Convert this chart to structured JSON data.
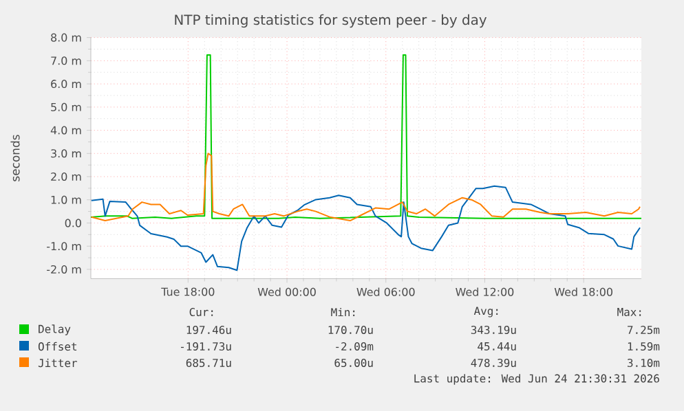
{
  "chart_data": {
    "type": "line",
    "title": "NTP timing statistics for system peer - by day",
    "ylabel": "seconds",
    "xlim": [
      "2026-06-23T12:06",
      "2026-06-24T21:30"
    ],
    "ylim": [
      -2.4,
      8.0
    ],
    "xticks": [
      {
        "value": "2026-06-23T18:00",
        "label": "Tue 18:00"
      },
      {
        "value": "2026-06-24T00:00",
        "label": "Wed 00:00"
      },
      {
        "value": "2026-06-24T06:00",
        "label": "Wed 06:00"
      },
      {
        "value": "2026-06-24T12:00",
        "label": "Wed 12:00"
      },
      {
        "value": "2026-06-24T18:00",
        "label": "Wed 18:00"
      }
    ],
    "yticks": [
      {
        "value": -2,
        "label": "-2.0 m"
      },
      {
        "value": -1,
        "label": "-1.0 m"
      },
      {
        "value": 0,
        "label": "0.0"
      },
      {
        "value": 1,
        "label": "1.0 m"
      },
      {
        "value": 2,
        "label": "2.0 m"
      },
      {
        "value": 3,
        "label": "3.0 m"
      },
      {
        "value": 4,
        "label": "4.0 m"
      },
      {
        "value": 5,
        "label": "5.0 m"
      },
      {
        "value": 6,
        "label": "6.0 m"
      },
      {
        "value": 7,
        "label": "7.0 m"
      },
      {
        "value": 8,
        "label": "8.0 m"
      }
    ],
    "grid": true,
    "legend": "bottom",
    "series": [
      {
        "name": "Delay",
        "color": "#00cc00",
        "x": [
          "2026-06-23T12:06",
          "2026-06-23T13:00",
          "2026-06-23T14:18",
          "2026-06-23T14:36",
          "2026-06-23T16:00",
          "2026-06-23T17:00",
          "2026-06-23T18:30",
          "2026-06-23T19:00",
          "2026-06-23T19:09",
          "2026-06-23T19:21",
          "2026-06-23T19:27",
          "2026-06-23T23:30",
          "2026-06-24T00:30",
          "2026-06-24T02:00",
          "2026-06-24T06:54",
          "2026-06-24T07:03",
          "2026-06-24T07:12",
          "2026-06-24T07:18",
          "2026-06-24T08:00",
          "2026-06-24T12:00",
          "2026-06-24T16:00",
          "2026-06-24T21:30"
        ],
        "values": [
          0.25,
          0.3,
          0.3,
          0.2,
          0.25,
          0.2,
          0.3,
          0.3,
          7.25,
          7.25,
          0.2,
          0.2,
          0.25,
          0.2,
          0.3,
          7.25,
          7.25,
          0.3,
          0.25,
          0.2,
          0.2,
          0.2
        ]
      },
      {
        "name": "Offset",
        "color": "#0066b3",
        "x": [
          "2026-06-23T12:08",
          "2026-06-23T12:50",
          "2026-06-23T12:58",
          "2026-06-23T13:15",
          "2026-06-23T14:13",
          "2026-06-23T14:30",
          "2026-06-23T14:55",
          "2026-06-23T15:04",
          "2026-06-23T15:45",
          "2026-06-23T16:43",
          "2026-06-23T17:08",
          "2026-06-23T17:34",
          "2026-06-23T17:58",
          "2026-06-23T18:48",
          "2026-06-23T19:05",
          "2026-06-23T19:30",
          "2026-06-23T19:47",
          "2026-06-23T20:28",
          "2026-06-23T20:58",
          "2026-06-23T21:15",
          "2026-06-23T21:35",
          "2026-06-23T22:00",
          "2026-06-23T22:17",
          "2026-06-23T22:41",
          "2026-06-23T23:06",
          "2026-06-23T23:40",
          "2026-06-24T00:05",
          "2026-06-24T00:38",
          "2026-06-24T01:04",
          "2026-06-24T01:45",
          "2026-06-24T02:35",
          "2026-06-24T03:08",
          "2026-06-24T03:50",
          "2026-06-24T04:15",
          "2026-06-24T05:05",
          "2026-06-24T05:22",
          "2026-06-24T06:03",
          "2026-06-24T06:45",
          "2026-06-24T06:56",
          "2026-06-24T07:05",
          "2026-06-24T07:22",
          "2026-06-24T07:35",
          "2026-06-24T08:08",
          "2026-06-24T08:50",
          "2026-06-24T09:23",
          "2026-06-24T09:48",
          "2026-06-24T10:22",
          "2026-06-24T10:38",
          "2026-06-24T11:03",
          "2026-06-24T11:28",
          "2026-06-24T11:53",
          "2026-06-24T12:35",
          "2026-06-24T13:16",
          "2026-06-24T13:41",
          "2026-06-24T14:48",
          "2026-06-24T15:22",
          "2026-06-24T15:55",
          "2026-06-24T16:53",
          "2026-06-24T17:02",
          "2026-06-24T17:43",
          "2026-06-24T18:17",
          "2026-06-24T19:15",
          "2026-06-24T19:48",
          "2026-06-24T20:05",
          "2026-06-24T20:55",
          "2026-06-24T21:03",
          "2026-06-24T21:25"
        ],
        "values": [
          0.97,
          1.03,
          0.3,
          0.93,
          0.9,
          0.65,
          0.3,
          -0.1,
          -0.46,
          -0.6,
          -0.7,
          -1.0,
          -1.0,
          -1.29,
          -1.69,
          -1.37,
          -1.88,
          -1.92,
          -2.04,
          -0.79,
          -0.2,
          0.3,
          0.0,
          0.3,
          -0.1,
          -0.18,
          0.34,
          0.54,
          0.79,
          1.01,
          1.09,
          1.19,
          1.09,
          0.8,
          0.7,
          0.3,
          0.0,
          -0.5,
          -0.59,
          0.9,
          -0.59,
          -0.89,
          -1.09,
          -1.19,
          -0.59,
          -0.1,
          0.0,
          0.7,
          1.09,
          1.49,
          1.49,
          1.59,
          1.53,
          0.9,
          0.8,
          0.6,
          0.4,
          0.3,
          -0.06,
          -0.2,
          -0.45,
          -0.5,
          -0.69,
          -0.99,
          -1.13,
          -0.59,
          -0.2
        ]
      },
      {
        "name": "Jitter",
        "color": "#ff8000",
        "x": [
          "2026-06-23T12:08",
          "2026-06-23T12:58",
          "2026-06-23T14:22",
          "2026-06-23T14:38",
          "2026-06-23T15:12",
          "2026-06-23T15:45",
          "2026-06-23T16:18",
          "2026-06-23T16:52",
          "2026-06-23T17:34",
          "2026-06-23T17:58",
          "2026-06-23T18:56",
          "2026-06-23T19:05",
          "2026-06-23T19:13",
          "2026-06-23T19:25",
          "2026-06-23T19:30",
          "2026-06-23T19:54",
          "2026-06-23T20:28",
          "2026-06-23T20:45",
          "2026-06-23T21:18",
          "2026-06-23T21:43",
          "2026-06-23T22:41",
          "2026-06-23T23:15",
          "2026-06-23T23:48",
          "2026-06-24T00:38",
          "2026-06-24T01:12",
          "2026-06-24T01:45",
          "2026-06-24T02:35",
          "2026-06-24T03:50",
          "2026-06-24T04:30",
          "2026-06-24T05:22",
          "2026-06-24T06:12",
          "2026-06-24T07:00",
          "2026-06-24T07:18",
          "2026-06-24T07:52",
          "2026-06-24T08:24",
          "2026-06-24T08:58",
          "2026-06-24T09:48",
          "2026-06-24T10:38",
          "2026-06-24T11:12",
          "2026-06-24T11:45",
          "2026-06-24T12:26",
          "2026-06-24T13:08",
          "2026-06-24T13:41",
          "2026-06-24T14:30",
          "2026-06-24T15:22",
          "2026-06-24T15:55",
          "2026-06-24T17:02",
          "2026-06-24T18:08",
          "2026-06-24T19:15",
          "2026-06-24T20:05",
          "2026-06-24T20:55",
          "2026-06-24T21:20",
          "2026-06-24T21:25"
        ],
        "values": [
          0.26,
          0.1,
          0.3,
          0.6,
          0.9,
          0.8,
          0.8,
          0.4,
          0.54,
          0.34,
          0.4,
          2.48,
          3.0,
          2.9,
          0.5,
          0.4,
          0.3,
          0.6,
          0.8,
          0.3,
          0.3,
          0.4,
          0.3,
          0.5,
          0.6,
          0.5,
          0.26,
          0.1,
          0.34,
          0.65,
          0.6,
          0.9,
          0.5,
          0.4,
          0.6,
          0.3,
          0.8,
          1.09,
          1.0,
          0.8,
          0.3,
          0.26,
          0.6,
          0.6,
          0.46,
          0.4,
          0.4,
          0.46,
          0.3,
          0.46,
          0.4,
          0.6,
          0.7
        ]
      }
    ],
    "annotations": [
      "Cur:",
      "Min:",
      "Avg:",
      "Max:",
      "197.46u",
      "170.70u",
      "343.19u",
      "7.25m",
      "-191.73u",
      "-2.09m",
      "45.44u",
      "1.59m",
      "685.71u",
      "65.00u",
      "478.39u",
      "3.10m",
      "Last update: Wed Jun 24 21:30:31 2026"
    ]
  }
}
